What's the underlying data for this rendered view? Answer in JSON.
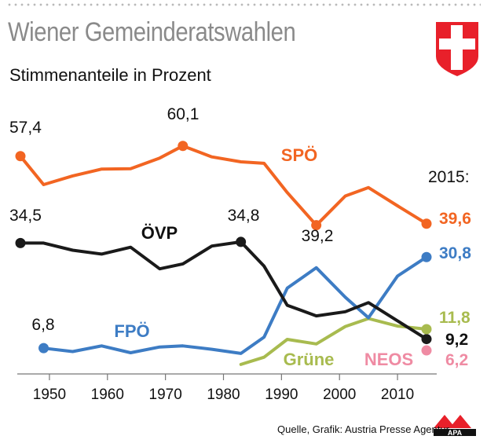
{
  "title": "Wiener Gemeinderatswahlen",
  "subtitle": "Stimmenanteile in Prozent",
  "source": "Quelle, Grafik: Austria Presse Agentur",
  "apa_logo": "APA",
  "year_marker": "2015:",
  "colors": {
    "SPÖ": "#f26522",
    "ÖVP": "#1a1a1a",
    "FPÖ": "#3d7cc4",
    "Grüne": "#a8bb4f",
    "NEOS": "#ef8ba3",
    "axis": "#777777",
    "title": "#8a8a8a"
  },
  "chart_data": {
    "type": "line",
    "x_ticks": [
      "1950",
      "1960",
      "1970",
      "1980",
      "1990",
      "2000",
      "2010"
    ],
    "xlim": [
      1945,
      2015
    ],
    "ylim": [
      0,
      65
    ],
    "series": [
      {
        "name": "SPÖ",
        "x": [
          1945,
          1949,
          1954,
          1959,
          1964,
          1969,
          1973,
          1978,
          1983,
          1987,
          1991,
          1996,
          2001,
          2005,
          2010,
          2015
        ],
        "values": [
          57.4,
          49.9,
          52.2,
          54.0,
          54.1,
          56.9,
          60.1,
          57.2,
          55.9,
          55.5,
          47.8,
          39.2,
          46.9,
          49.1,
          44.3,
          39.6
        ]
      },
      {
        "name": "ÖVP",
        "x": [
          1945,
          1949,
          1954,
          1959,
          1964,
          1969,
          1973,
          1978,
          1983,
          1987,
          1991,
          1996,
          2001,
          2005,
          2010,
          2015
        ],
        "values": [
          34.5,
          34.5,
          32.6,
          31.6,
          33.4,
          27.7,
          29.0,
          33.7,
          34.8,
          28.4,
          18.1,
          15.3,
          16.4,
          18.8,
          14.0,
          9.2
        ]
      },
      {
        "name": "FPÖ",
        "x": [
          1949,
          1954,
          1959,
          1964,
          1969,
          1973,
          1978,
          1983,
          1987,
          1991,
          1996,
          2001,
          2005,
          2010,
          2015
        ],
        "values": [
          6.8,
          5.9,
          7.4,
          5.6,
          7.1,
          7.4,
          6.5,
          5.4,
          9.7,
          22.6,
          28.0,
          20.2,
          14.8,
          25.8,
          30.8
        ]
      },
      {
        "name": "Grüne",
        "x": [
          1983,
          1987,
          1991,
          1996,
          2001,
          2005,
          2010,
          2015
        ],
        "values": [
          2.5,
          4.4,
          9.1,
          7.9,
          12.5,
          14.6,
          12.6,
          11.8
        ]
      },
      {
        "name": "NEOS",
        "x": [
          2015
        ],
        "values": [
          6.2
        ]
      }
    ],
    "annotations": [
      {
        "series": "SPÖ",
        "x": 1945,
        "text": "57,4"
      },
      {
        "series": "SPÖ",
        "x": 1973,
        "text": "60,1"
      },
      {
        "series": "SPÖ",
        "x": 1996,
        "text": "39,2"
      },
      {
        "series": "SPÖ",
        "x": 2015,
        "text": "39,6"
      },
      {
        "series": "ÖVP",
        "x": 1945,
        "text": "34,5"
      },
      {
        "series": "ÖVP",
        "x": 1983,
        "text": "34,8"
      },
      {
        "series": "ÖVP",
        "x": 2015,
        "text": "9,2"
      },
      {
        "series": "FPÖ",
        "x": 1949,
        "text": "6,8"
      },
      {
        "series": "FPÖ",
        "x": 2015,
        "text": "30,8"
      },
      {
        "series": "Grüne",
        "x": 2015,
        "text": "11,8"
      },
      {
        "series": "NEOS",
        "x": 2015,
        "text": "6,2"
      }
    ],
    "series_labels": [
      "SPÖ",
      "ÖVP",
      "FPÖ",
      "Grüne",
      "NEOS"
    ]
  }
}
